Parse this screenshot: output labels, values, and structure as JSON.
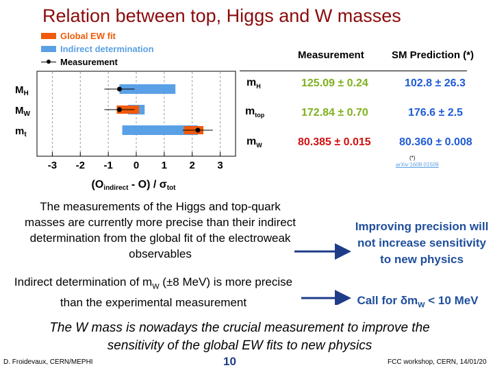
{
  "title": "Relation between top, Higgs and W masses",
  "legend": [
    "Global EW fit",
    "Indirect determination",
    "Measurement"
  ],
  "colors": {
    "fit": "#f05a0a",
    "indirect": "#5aa0e6",
    "measurement": "#000000",
    "title": "#8b0b0b"
  },
  "chart_data": {
    "type": "pull-plot",
    "xlabel": "(O_indirect - O) / σ_tot",
    "xlim": [
      -3.5,
      3.5
    ],
    "ticks": [
      "-3",
      "-2",
      "-1",
      "0",
      "1",
      "2",
      "3"
    ],
    "rows": [
      {
        "label": "M_H",
        "indirect": [
          -0.6,
          1.4
        ],
        "fit": null,
        "measurement": -0.6
      },
      {
        "label": "M_W",
        "indirect": [
          -0.3,
          0.3
        ],
        "fit": [
          -0.7,
          0.1
        ],
        "measurement": -0.6
      },
      {
        "label": "m_t",
        "indirect": [
          -0.5,
          2.2
        ],
        "fit": [
          1.7,
          2.4
        ],
        "measurement": 2.2
      }
    ]
  },
  "table": {
    "header_measurement": "Measurement",
    "header_prediction": "SM Prediction (*)",
    "rows": [
      {
        "quantity": "m",
        "sub": "H",
        "measurement": "125.09 ± 0.24",
        "prediction": "102.8 ± 26.3"
      },
      {
        "quantity": "m",
        "sub": "top",
        "measurement": "172.84 ± 0.70",
        "prediction": "176.6 ± 2.5"
      },
      {
        "quantity": "m",
        "sub": "W",
        "measurement": "80.385 ± 0.015",
        "prediction": "80.360 ± 0.008"
      }
    ],
    "note": "(*)",
    "reference": "arXiv:1608.01509"
  },
  "text": {
    "para1": "The measurements of the Higgs and top-quark masses are currently more precise than their indirect determination from the global fit of the electroweak observables",
    "para2_pre": "Indirect determination of m",
    "para2_sub": "W",
    "para2_post": " (±8 MeV) is more precise than the experimental measurement",
    "right1": "Improving precision will not increase sensitivity to new physics",
    "right2_pre": "Call for δm",
    "right2_sub": "W",
    "right2_post": " < 10 MeV",
    "bottom": "The W mass is nowadays the crucial measurement to improve the sensitivity of the global EW fits to new physics"
  },
  "footer": {
    "left": "D. Froidevaux, CERN/MEPHI",
    "page": "10",
    "right": "FCC workshop, CERN, 14/01/20"
  }
}
